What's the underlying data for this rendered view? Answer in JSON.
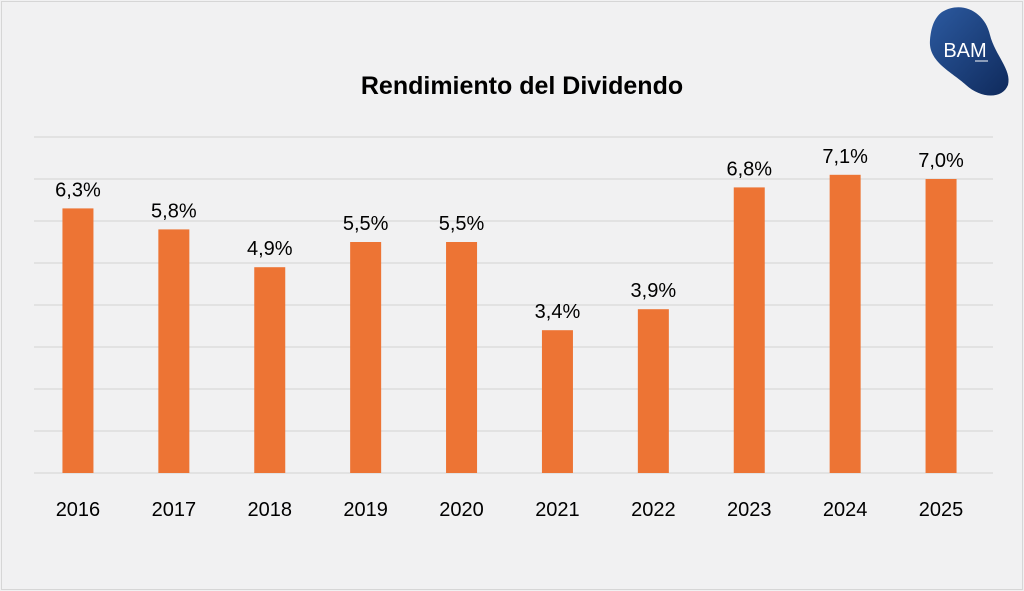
{
  "chart_data": {
    "type": "bar",
    "title": "Rendimiento del Dividendo",
    "categories": [
      "2016",
      "2017",
      "2018",
      "2019",
      "2020",
      "2021",
      "2022",
      "2023",
      "2024",
      "2025"
    ],
    "values": [
      6.3,
      5.8,
      4.9,
      5.5,
      5.5,
      3.4,
      3.9,
      6.8,
      7.1,
      7.0
    ],
    "data_labels": [
      "6,3%",
      "5,8%",
      "4,9%",
      "5,5%",
      "5,5%",
      "3,4%",
      "3,9%",
      "6,8%",
      "7,1%",
      "7,0%"
    ],
    "xlabel": "",
    "ylabel": "",
    "ylim": [
      0,
      8
    ],
    "grid": true,
    "y_axis_labels_shown": false,
    "bar_color": "#ed7434",
    "grid_color": "#d9d9d9"
  },
  "logo": {
    "text": "BAM",
    "color": "#1d3f7a"
  },
  "watermark": "BAM"
}
